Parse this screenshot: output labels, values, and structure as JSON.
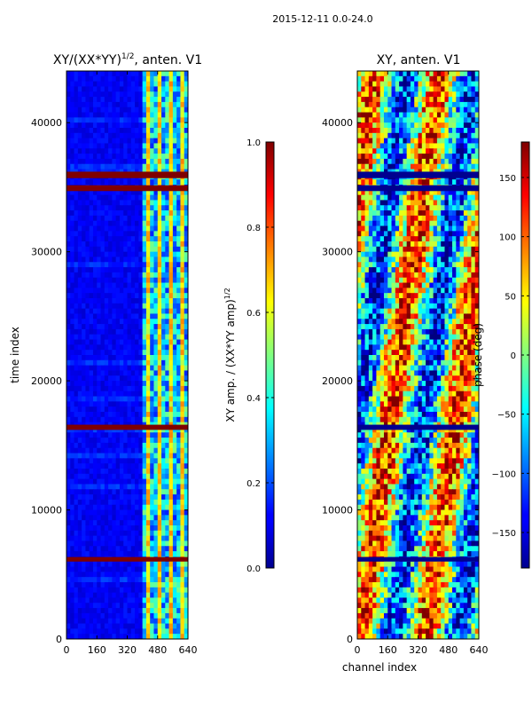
{
  "figure": {
    "suptitle": "2015-12-11 0.0-24.0"
  },
  "chart_data": [
    {
      "type": "heatmap",
      "title": "XY/(XX*YY)^{1/2}, anten. V1",
      "title_main": "XY/(XX*YY)",
      "title_sup": "1/2",
      "title_rest": ", anten. V1",
      "xlabel": "",
      "ylabel": "time index",
      "xlim": [
        0,
        640
      ],
      "ylim": [
        0,
        44000
      ],
      "xticks": [
        0,
        160,
        320,
        480,
        640
      ],
      "yticks": [
        0,
        10000,
        20000,
        30000,
        40000
      ],
      "colormap": "jet",
      "background_value": 0.1,
      "bright_channel_range": [
        400,
        640
      ],
      "flagged_rows": [
        {
          "y": 6000,
          "height": 350,
          "value": 1.0
        },
        {
          "y": 16200,
          "height": 400,
          "value": 1.0
        },
        {
          "y": 34700,
          "height": 450,
          "value": 1.0
        },
        {
          "y": 35700,
          "height": 500,
          "value": 1.0
        }
      ],
      "colorbar": {
        "label": "XY amp. / (XX*YY amp)^{1/2}",
        "label_main": "XY amp. / (XX*YY amp)",
        "label_sup": "1/2",
        "range": [
          0.0,
          1.0
        ],
        "ticks": [
          "0.0",
          "0.2",
          "0.4",
          "0.6",
          "0.8",
          "1.0"
        ]
      }
    },
    {
      "type": "heatmap",
      "title": "XY, anten. V1",
      "xlabel": "channel index",
      "ylabel": "",
      "xlim": [
        0,
        640
      ],
      "ylim": [
        0,
        44000
      ],
      "xticks": [
        0,
        160,
        320,
        480,
        640
      ],
      "yticks": [
        0,
        10000,
        20000,
        30000,
        40000
      ],
      "colormap": "jet",
      "flagged_rows": [
        {
          "y": 6000,
          "height": 350,
          "value": -180
        },
        {
          "y": 16200,
          "height": 400,
          "value": -180
        },
        {
          "y": 34700,
          "height": 450,
          "value": -180
        },
        {
          "y": 35700,
          "height": 500,
          "value": -180
        }
      ],
      "colorbar": {
        "label": "phase (deg)",
        "range": [
          -180,
          180
        ],
        "ticks": [
          "−150",
          "−100",
          "−50",
          "0",
          "50",
          "100",
          "150"
        ]
      }
    }
  ],
  "colors": {
    "jet_dark_blue": "#00008f",
    "jet_dark_red": "#7f0000",
    "frame": "#000000"
  }
}
